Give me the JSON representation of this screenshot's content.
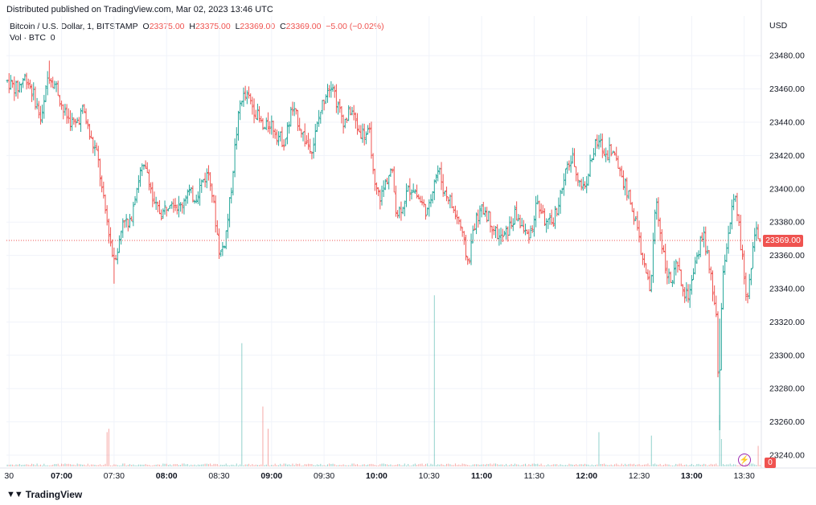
{
  "header": {
    "published": "Distributed published on TradingView.com, Mar 02, 2023 13:46 UTC"
  },
  "legend": {
    "symbol": "Bitcoin / U.S. Dollar, 1, BITSTAMP",
    "o_label": "O",
    "o_value": "23375.00",
    "h_label": "H",
    "h_value": "23375.00",
    "l_label": "L",
    "l_value": "23369.00",
    "c_label": "C",
    "c_value": "23369.00",
    "change": "−5.00 (−0.02%)",
    "vol_label": "Vol · BTC",
    "vol_value": "0"
  },
  "axis": {
    "currency": "USD",
    "last_price": "23369.00",
    "last_volume": "0"
  },
  "footer": {
    "brand": "TradingView",
    "brand_logo": "tv-logo-icon"
  },
  "colors": {
    "up": "#26a69a",
    "down": "#ef5350",
    "grid": "#f0f3fa",
    "last_line": "#ef5350"
  },
  "chart_data": {
    "type": "ohlc",
    "title": "Bitcoin / U.S. Dollar, 1, BITSTAMP",
    "ylim": [
      23235,
      23495
    ],
    "y_ticks": [
      23240,
      23260,
      23280,
      23300,
      23320,
      23340,
      23360,
      23380,
      23400,
      23420,
      23440,
      23460,
      23480
    ],
    "x_ticks": [
      {
        "label": "30",
        "minute": 390,
        "bold": false
      },
      {
        "label": "07:00",
        "minute": 420,
        "bold": true
      },
      {
        "label": "07:30",
        "minute": 450,
        "bold": false
      },
      {
        "label": "08:00",
        "minute": 480,
        "bold": true
      },
      {
        "label": "08:30",
        "minute": 510,
        "bold": false
      },
      {
        "label": "09:00",
        "minute": 540,
        "bold": true
      },
      {
        "label": "09:30",
        "minute": 570,
        "bold": false
      },
      {
        "label": "10:00",
        "minute": 600,
        "bold": true
      },
      {
        "label": "10:30",
        "minute": 630,
        "bold": false
      },
      {
        "label": "11:00",
        "minute": 660,
        "bold": true
      },
      {
        "label": "11:30",
        "minute": 690,
        "bold": false
      },
      {
        "label": "12:00",
        "minute": 720,
        "bold": true
      },
      {
        "label": "12:30",
        "minute": 750,
        "bold": false
      },
      {
        "label": "13:00",
        "minute": 780,
        "bold": true
      },
      {
        "label": "13:30",
        "minute": 810,
        "bold": false
      }
    ],
    "x_range_minutes": [
      388.5,
      819.8
    ],
    "last_price": 23369,
    "key_points": [
      {
        "minute": 389,
        "price": 23465
      },
      {
        "minute": 395,
        "price": 23460
      },
      {
        "minute": 400,
        "price": 23468
      },
      {
        "minute": 405,
        "price": 23455
      },
      {
        "minute": 409,
        "price": 23440
      },
      {
        "minute": 413,
        "price": 23470
      },
      {
        "minute": 418,
        "price": 23460
      },
      {
        "minute": 422,
        "price": 23445
      },
      {
        "minute": 428,
        "price": 23438
      },
      {
        "minute": 433,
        "price": 23448
      },
      {
        "minute": 437,
        "price": 23430
      },
      {
        "minute": 441,
        "price": 23420
      },
      {
        "minute": 444,
        "price": 23395
      },
      {
        "minute": 447,
        "price": 23378
      },
      {
        "minute": 450,
        "price": 23358
      },
      {
        "minute": 453,
        "price": 23365
      },
      {
        "minute": 456,
        "price": 23385
      },
      {
        "minute": 459,
        "price": 23375
      },
      {
        "minute": 462,
        "price": 23395
      },
      {
        "minute": 466,
        "price": 23412
      },
      {
        "minute": 470,
        "price": 23410
      },
      {
        "minute": 473,
        "price": 23390
      },
      {
        "minute": 478,
        "price": 23385
      },
      {
        "minute": 483,
        "price": 23395
      },
      {
        "minute": 488,
        "price": 23388
      },
      {
        "minute": 492,
        "price": 23398
      },
      {
        "minute": 497,
        "price": 23395
      },
      {
        "minute": 501,
        "price": 23405
      },
      {
        "minute": 505,
        "price": 23410
      },
      {
        "minute": 508,
        "price": 23385
      },
      {
        "minute": 511,
        "price": 23360
      },
      {
        "minute": 514,
        "price": 23370
      },
      {
        "minute": 517,
        "price": 23395
      },
      {
        "minute": 520,
        "price": 23430
      },
      {
        "minute": 523,
        "price": 23455
      },
      {
        "minute": 527,
        "price": 23455
      },
      {
        "minute": 532,
        "price": 23445
      },
      {
        "minute": 536,
        "price": 23435
      },
      {
        "minute": 540,
        "price": 23440
      },
      {
        "minute": 544,
        "price": 23432
      },
      {
        "minute": 548,
        "price": 23428
      },
      {
        "minute": 552,
        "price": 23448
      },
      {
        "minute": 556,
        "price": 23440
      },
      {
        "minute": 560,
        "price": 23428
      },
      {
        "minute": 564,
        "price": 23425
      },
      {
        "minute": 568,
        "price": 23445
      },
      {
        "minute": 572,
        "price": 23460
      },
      {
        "minute": 575,
        "price": 23465
      },
      {
        "minute": 578,
        "price": 23450
      },
      {
        "minute": 582,
        "price": 23440
      },
      {
        "minute": 586,
        "price": 23448
      },
      {
        "minute": 590,
        "price": 23435
      },
      {
        "minute": 594,
        "price": 23433
      },
      {
        "minute": 597,
        "price": 23432
      },
      {
        "minute": 599,
        "price": 23400
      },
      {
        "minute": 603,
        "price": 23395
      },
      {
        "minute": 606,
        "price": 23405
      },
      {
        "minute": 609,
        "price": 23412
      },
      {
        "minute": 612,
        "price": 23385
      },
      {
        "minute": 615,
        "price": 23390
      },
      {
        "minute": 618,
        "price": 23398
      },
      {
        "minute": 621,
        "price": 23402
      },
      {
        "minute": 624,
        "price": 23395
      },
      {
        "minute": 627,
        "price": 23390
      },
      {
        "minute": 630,
        "price": 23385
      },
      {
        "minute": 633,
        "price": 23405
      },
      {
        "minute": 636,
        "price": 23412
      },
      {
        "minute": 639,
        "price": 23398
      },
      {
        "minute": 642,
        "price": 23395
      },
      {
        "minute": 645,
        "price": 23385
      },
      {
        "minute": 648,
        "price": 23380
      },
      {
        "minute": 650,
        "price": 23368
      },
      {
        "minute": 653,
        "price": 23355
      },
      {
        "minute": 656,
        "price": 23378
      },
      {
        "minute": 659,
        "price": 23385
      },
      {
        "minute": 662,
        "price": 23388
      },
      {
        "minute": 665,
        "price": 23382
      },
      {
        "minute": 668,
        "price": 23375
      },
      {
        "minute": 671,
        "price": 23370
      },
      {
        "minute": 674,
        "price": 23372
      },
      {
        "minute": 677,
        "price": 23378
      },
      {
        "minute": 680,
        "price": 23385
      },
      {
        "minute": 683,
        "price": 23378
      },
      {
        "minute": 686,
        "price": 23372
      },
      {
        "minute": 689,
        "price": 23375
      },
      {
        "minute": 692,
        "price": 23392
      },
      {
        "minute": 695,
        "price": 23385
      },
      {
        "minute": 698,
        "price": 23378
      },
      {
        "minute": 701,
        "price": 23380
      },
      {
        "minute": 704,
        "price": 23390
      },
      {
        "minute": 707,
        "price": 23402
      },
      {
        "minute": 710,
        "price": 23415
      },
      {
        "minute": 713,
        "price": 23418
      },
      {
        "minute": 716,
        "price": 23405
      },
      {
        "minute": 719,
        "price": 23400
      },
      {
        "minute": 722,
        "price": 23412
      },
      {
        "minute": 725,
        "price": 23425
      },
      {
        "minute": 728,
        "price": 23428
      },
      {
        "minute": 731,
        "price": 23420
      },
      {
        "minute": 734,
        "price": 23425
      },
      {
        "minute": 737,
        "price": 23418
      },
      {
        "minute": 740,
        "price": 23410
      },
      {
        "minute": 743,
        "price": 23400
      },
      {
        "minute": 746,
        "price": 23390
      },
      {
        "minute": 749,
        "price": 23378
      },
      {
        "minute": 752,
        "price": 23360
      },
      {
        "minute": 755,
        "price": 23345
      },
      {
        "minute": 757,
        "price": 23338
      },
      {
        "minute": 760,
        "price": 23395
      },
      {
        "minute": 763,
        "price": 23370
      },
      {
        "minute": 766,
        "price": 23352
      },
      {
        "minute": 769,
        "price": 23342
      },
      {
        "minute": 772,
        "price": 23355
      },
      {
        "minute": 775,
        "price": 23340
      },
      {
        "minute": 778,
        "price": 23335
      },
      {
        "minute": 781,
        "price": 23345
      },
      {
        "minute": 784,
        "price": 23360
      },
      {
        "minute": 787,
        "price": 23375
      },
      {
        "minute": 790,
        "price": 23355
      },
      {
        "minute": 793,
        "price": 23335
      },
      {
        "minute": 795,
        "price": 23322
      },
      {
        "minute": 796,
        "price": 23260
      },
      {
        "minute": 797,
        "price": 23320
      },
      {
        "minute": 799,
        "price": 23355
      },
      {
        "minute": 802,
        "price": 23378
      },
      {
        "minute": 805,
        "price": 23395
      },
      {
        "minute": 807,
        "price": 23382
      },
      {
        "minute": 809,
        "price": 23360
      },
      {
        "minute": 811,
        "price": 23345
      },
      {
        "minute": 812,
        "price": 23330
      },
      {
        "minute": 814,
        "price": 23350
      },
      {
        "minute": 816,
        "price": 23372
      },
      {
        "minute": 817,
        "price": 23378
      },
      {
        "minute": 818,
        "price": 23372
      },
      {
        "minute": 819.5,
        "price": 23369
      }
    ],
    "volume_spikes": [
      {
        "minute": 446,
        "volume": 0.2
      },
      {
        "minute": 447,
        "volume": 0.22
      },
      {
        "minute": 523,
        "volume": 0.72
      },
      {
        "minute": 535,
        "volume": 0.35
      },
      {
        "minute": 538,
        "volume": 0.22
      },
      {
        "minute": 633,
        "volume": 1.0
      },
      {
        "minute": 727,
        "volume": 0.2
      },
      {
        "minute": 757,
        "volume": 0.18
      },
      {
        "minute": 796,
        "volume": 0.3
      },
      {
        "minute": 797,
        "volume": 0.16
      },
      {
        "minute": 818,
        "volume": 0.12
      }
    ],
    "volume_max_height_fraction": 0.38
  }
}
